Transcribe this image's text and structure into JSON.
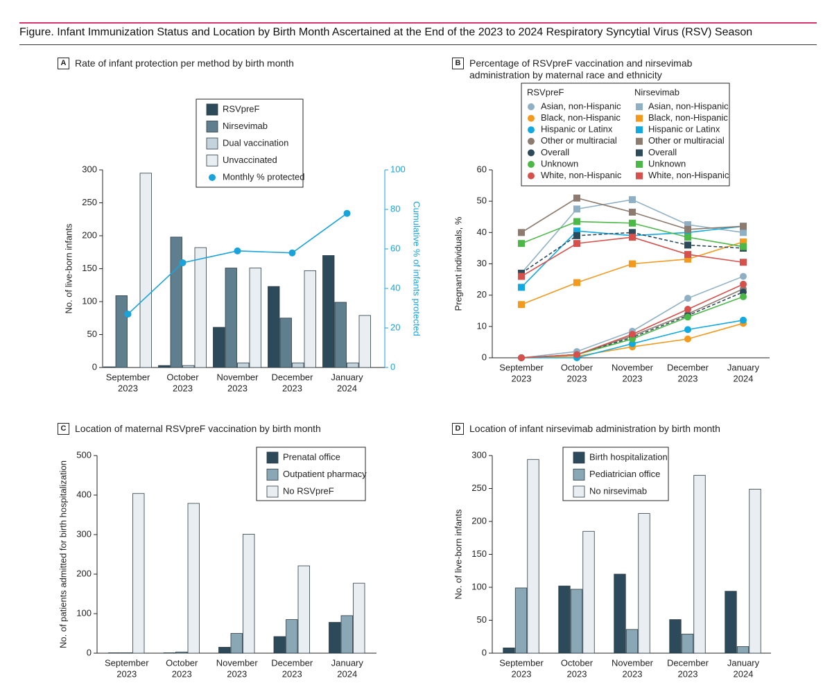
{
  "title": "Figure. Infant Immunization Status and Location by Birth Month Ascertained at the End of the 2023 to 2024 Respiratory Syncytial Virus (RSV) Season",
  "chart_data": [
    {
      "type": "bar",
      "label": "A",
      "title": "Rate of infant protection per method by birth month",
      "categories": [
        [
          "September",
          "2023"
        ],
        [
          "October",
          "2023"
        ],
        [
          "November",
          "2023"
        ],
        [
          "December",
          "2023"
        ],
        [
          "January",
          "2024"
        ]
      ],
      "ylabel": "No. of live-born infants",
      "y2label": "Cumulative % of infants protected",
      "ylim": [
        0,
        300
      ],
      "yticks": [
        0,
        50,
        100,
        150,
        200,
        250,
        300
      ],
      "y2lim": [
        0,
        100
      ],
      "y2ticks": [
        0,
        20,
        40,
        60,
        80,
        100
      ],
      "series": [
        {
          "name": "RSVpreF",
          "color": "#2d4a5a",
          "values": [
            1,
            3,
            61,
            123,
            170
          ]
        },
        {
          "name": "Nirsevimab",
          "color": "#5f7f8f",
          "values": [
            109,
            198,
            151,
            75,
            99
          ]
        },
        {
          "name": "Dual vaccination",
          "color": "#c5d3dc",
          "values": [
            0,
            3,
            7,
            7,
            7
          ]
        },
        {
          "name": "Unvaccinated",
          "color": "#e9eef2",
          "values": [
            295,
            182,
            151,
            147,
            79
          ]
        },
        {
          "name": "Monthly % protected",
          "color": "#1aa3d9",
          "type": "line",
          "axis": "y2",
          "values": [
            27,
            53,
            59,
            58,
            78
          ]
        }
      ]
    },
    {
      "type": "line",
      "label": "B",
      "title": "Percentage of RSVpreF vaccination and nirsevimab administration by maternal race and ethnicity",
      "categories": [
        [
          "September",
          "2023"
        ],
        [
          "October",
          "2023"
        ],
        [
          "November",
          "2023"
        ],
        [
          "December",
          "2023"
        ],
        [
          "January",
          "2024"
        ]
      ],
      "ylabel": "Pregnant individuals, %",
      "ylim": [
        0,
        60
      ],
      "yticks": [
        0,
        10,
        20,
        30,
        40,
        50,
        60
      ],
      "groups": [
        {
          "name": "RSVpreF",
          "marker": "circle",
          "series": [
            {
              "name": "Asian, non-Hispanic",
              "color": "#8fb0c4",
              "values": [
                0,
                2,
                8.5,
                19,
                26
              ]
            },
            {
              "name": "Black, non-Hispanic",
              "color": "#f2991e",
              "values": [
                0,
                0.5,
                3.5,
                6,
                11
              ]
            },
            {
              "name": "Hispanic or Latinx",
              "color": "#12a9e0",
              "values": [
                0,
                0,
                4.5,
                9,
                12
              ]
            },
            {
              "name": "Other or multiracial",
              "color": "#8c7b6e",
              "values": [
                0,
                1,
                7,
                14,
                22
              ]
            },
            {
              "name": "Overall",
              "color": "#2d4a5a",
              "dash": true,
              "values": [
                0,
                1,
                6.5,
                13.5,
                21
              ]
            },
            {
              "name": "Unknown",
              "color": "#4cb848",
              "values": [
                0,
                1,
                6,
                13,
                19.5
              ]
            },
            {
              "name": "White, non-Hispanic",
              "color": "#d6504c",
              "values": [
                0,
                1,
                7.5,
                15.5,
                23.5
              ]
            }
          ]
        },
        {
          "name": "Nirsevimab",
          "marker": "square",
          "series": [
            {
              "name": "Asian, non-Hispanic",
              "color": "#8fb0c4",
              "values": [
                27,
                47.5,
                50.5,
                42.5,
                40
              ]
            },
            {
              "name": "Black, non-Hispanic",
              "color": "#f2991e",
              "values": [
                17,
                24,
                30,
                31.5,
                37
              ]
            },
            {
              "name": "Hispanic or Latinx",
              "color": "#12a9e0",
              "values": [
                22.5,
                40.5,
                39,
                40,
                42
              ]
            },
            {
              "name": "Other or multiracial",
              "color": "#8c7b6e",
              "values": [
                40,
                51,
                46.5,
                41,
                42
              ]
            },
            {
              "name": "Overall",
              "color": "#2d4a5a",
              "dash": true,
              "values": [
                27,
                39,
                40,
                36,
                35
              ]
            },
            {
              "name": "Unknown",
              "color": "#4cb848",
              "values": [
                36.5,
                43.5,
                43,
                38.5,
                35.5
              ]
            },
            {
              "name": "White, non-Hispanic",
              "color": "#d6504c",
              "values": [
                26,
                36.5,
                38.5,
                33,
                30.5
              ]
            }
          ]
        }
      ]
    },
    {
      "type": "bar",
      "label": "C",
      "title": "Location of maternal RSVpreF vaccination by birth month",
      "categories": [
        [
          "September",
          "2023"
        ],
        [
          "October",
          "2023"
        ],
        [
          "November",
          "2023"
        ],
        [
          "December",
          "2023"
        ],
        [
          "January",
          "2024"
        ]
      ],
      "ylabel": "No. of patients admitted for birth hospitalization",
      "ylim": [
        0,
        500
      ],
      "yticks": [
        0,
        100,
        200,
        300,
        400,
        500
      ],
      "series": [
        {
          "name": "Prenatal office",
          "color": "#2d4a5a",
          "values": [
            1,
            1,
            15,
            42,
            78
          ]
        },
        {
          "name": "Outpatient pharmacy",
          "color": "#8aa7b6",
          "values": [
            1,
            3,
            50,
            85,
            95
          ]
        },
        {
          "name": "No RSVpreF",
          "color": "#e9eef2",
          "values": [
            404,
            379,
            301,
            221,
            177
          ]
        }
      ]
    },
    {
      "type": "bar",
      "label": "D",
      "title": "Location of infant nirsevimab administration by birth month",
      "categories": [
        [
          "September",
          "2023"
        ],
        [
          "October",
          "2023"
        ],
        [
          "November",
          "2023"
        ],
        [
          "December",
          "2023"
        ],
        [
          "January",
          "2024"
        ]
      ],
      "ylabel": "No. of live-born infants",
      "ylim": [
        0,
        300
      ],
      "yticks": [
        0,
        50,
        100,
        150,
        200,
        250,
        300
      ],
      "series": [
        {
          "name": "Birth hospitalization",
          "color": "#2d4a5a",
          "values": [
            8,
            102,
            120,
            51,
            94
          ]
        },
        {
          "name": "Pediatrician office",
          "color": "#8aa7b6",
          "values": [
            99,
            97,
            36,
            29,
            10
          ]
        },
        {
          "name": "No nirsevimab",
          "color": "#e9eef2",
          "values": [
            294,
            185,
            212,
            270,
            249
          ]
        }
      ]
    }
  ]
}
